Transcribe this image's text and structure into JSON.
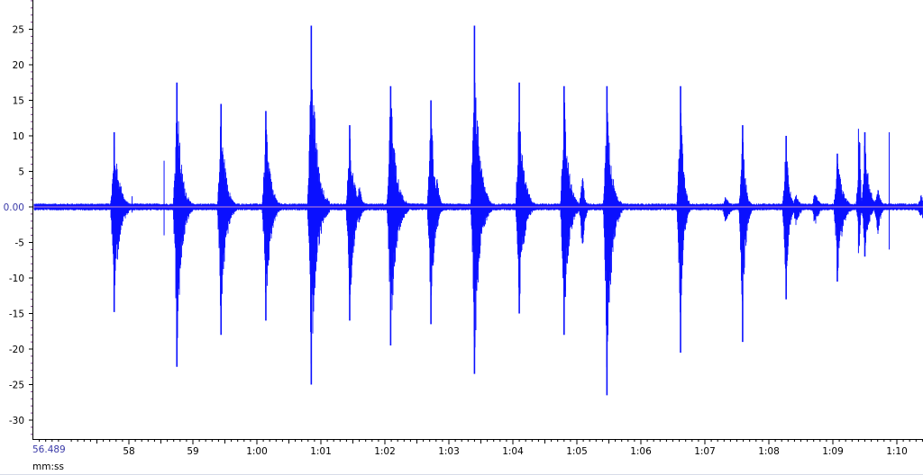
{
  "chart_data": {
    "type": "line",
    "title": "",
    "xlabel": "mm:ss",
    "ylabel": "",
    "xlim": [
      56.489,
      71.2
    ],
    "ylim": [
      -33,
      29
    ],
    "grid": false,
    "x_start_label": "56.489",
    "x_ticks": [
      {
        "x": 58,
        "label": "58"
      },
      {
        "x": 59,
        "label": "59"
      },
      {
        "x": 60,
        "label": "1:00"
      },
      {
        "x": 61,
        "label": "1:01"
      },
      {
        "x": 62,
        "label": "1:02"
      },
      {
        "x": 63,
        "label": "1:03"
      },
      {
        "x": 64,
        "label": "1:04"
      },
      {
        "x": 65,
        "label": "1:05"
      },
      {
        "x": 66,
        "label": "1:06"
      },
      {
        "x": 67,
        "label": "1:07"
      },
      {
        "x": 68,
        "label": "1:08"
      },
      {
        "x": 69,
        "label": "1:09"
      },
      {
        "x": 70,
        "label": "1:10"
      }
    ],
    "y_ticks": [
      {
        "y": 25,
        "label": "25"
      },
      {
        "y": 20,
        "label": "20"
      },
      {
        "y": 15,
        "label": "15"
      },
      {
        "y": 10,
        "label": "10"
      },
      {
        "y": 5,
        "label": "5"
      },
      {
        "y": 0,
        "label": "0.00"
      },
      {
        "y": -5,
        "label": "-5"
      },
      {
        "y": -10,
        "label": "-10"
      },
      {
        "y": -15,
        "label": "-15"
      },
      {
        "y": -20,
        "label": "-20"
      },
      {
        "y": -25,
        "label": "-25"
      },
      {
        "y": -30,
        "label": "-30"
      }
    ],
    "series": [
      {
        "color": "#0a10ff",
        "noise_floor": 0.5,
        "bursts": [
          {
            "t": 57.75,
            "pos": 10.5,
            "neg": -14.8,
            "dur": 0.25
          },
          {
            "t": 58.73,
            "pos": 17.5,
            "neg": -22.5,
            "dur": 0.22
          },
          {
            "t": 59.42,
            "pos": 14.5,
            "neg": -18.0,
            "dur": 0.22
          },
          {
            "t": 60.12,
            "pos": 13.5,
            "neg": -16.0,
            "dur": 0.22
          },
          {
            "t": 60.83,
            "pos": 25.5,
            "neg": -25.0,
            "dur": 0.26
          },
          {
            "t": 61.43,
            "pos": 11.5,
            "neg": -16.0,
            "dur": 0.22
          },
          {
            "t": 62.07,
            "pos": 17.0,
            "neg": -19.5,
            "dur": 0.26
          },
          {
            "t": 62.7,
            "pos": 15.0,
            "neg": -16.5,
            "dur": 0.18
          },
          {
            "t": 63.38,
            "pos": 25.5,
            "neg": -23.5,
            "dur": 0.24
          },
          {
            "t": 64.08,
            "pos": 17.5,
            "neg": -15.0,
            "dur": 0.22
          },
          {
            "t": 64.78,
            "pos": 17.0,
            "neg": -18.0,
            "dur": 0.22
          },
          {
            "t": 65.45,
            "pos": 17.0,
            "neg": -26.5,
            "dur": 0.22
          },
          {
            "t": 66.6,
            "pos": 17.0,
            "neg": -20.5,
            "dur": 0.14
          },
          {
            "t": 67.57,
            "pos": 11.5,
            "neg": -19.0,
            "dur": 0.14
          },
          {
            "t": 68.25,
            "pos": 10.0,
            "neg": -13.0,
            "dur": 0.14
          },
          {
            "t": 69.05,
            "pos": 7.5,
            "neg": -10.5,
            "dur": 0.24
          },
          {
            "t": 69.48,
            "pos": 10.5,
            "neg": -7.0,
            "dur": 0.2
          }
        ],
        "echoes": [
          {
            "t": 57.85,
            "pos": 4.5,
            "neg": -4.0,
            "dur": 0.08
          },
          {
            "t": 61.58,
            "pos": 3.5,
            "neg": -2.5,
            "dur": 0.15
          },
          {
            "t": 62.8,
            "pos": 5.0,
            "neg": -4.0,
            "dur": 0.1
          },
          {
            "t": 65.07,
            "pos": 5.0,
            "neg": -8.0,
            "dur": 0.1
          },
          {
            "t": 67.3,
            "pos": 1.5,
            "neg": -2.5,
            "dur": 0.25
          },
          {
            "t": 68.4,
            "pos": 2.0,
            "neg": -3.0,
            "dur": 0.2
          },
          {
            "t": 68.7,
            "pos": 2.5,
            "neg": -3.0,
            "dur": 0.2
          },
          {
            "t": 69.68,
            "pos": 3.0,
            "neg": -4.5,
            "dur": 0.15
          },
          {
            "t": 69.4,
            "pos": 14.0,
            "neg": -7.0,
            "dur": 0.04
          },
          {
            "t": 70.35,
            "pos": 1.8,
            "neg": -1.8,
            "dur": 0.9
          }
        ],
        "spikes": [
          {
            "t": 58.55,
            "pos": 6.5,
            "neg": -4.0
          },
          {
            "t": 69.4,
            "pos": 11.0,
            "neg": -6.5
          },
          {
            "t": 69.88,
            "pos": 10.5,
            "neg": -6.0
          },
          {
            "t": 58.05,
            "pos": 1.5,
            "neg": -0.8
          }
        ]
      }
    ]
  }
}
